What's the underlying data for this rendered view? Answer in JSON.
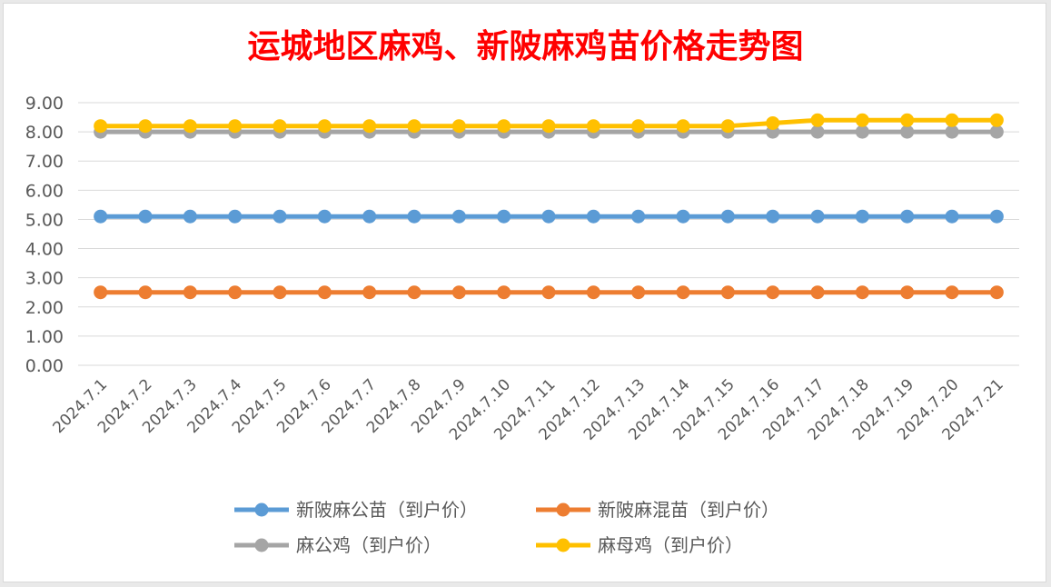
{
  "chart_data": {
    "type": "line",
    "title": "运城地区麻鸡、新陂麻鸡苗价格走势图",
    "categories": [
      "2024.7.1",
      "2024.7.2",
      "2024.7.3",
      "2024.7.4",
      "2024.7.5",
      "2024.7.6",
      "2024.7.7",
      "2024.7.8",
      "2024.7.9",
      "2024.7.10",
      "2024.7.11",
      "2024.7.12",
      "2024.7.13",
      "2024.7.14",
      "2024.7.15",
      "2024.7.16",
      "2024.7.17",
      "2024.7.18",
      "2024.7.19",
      "2024.7.20",
      "2024.7.21"
    ],
    "y_ticks": [
      "0.00",
      "1.00",
      "2.00",
      "3.00",
      "4.00",
      "5.00",
      "6.00",
      "7.00",
      "8.00",
      "9.00"
    ],
    "ylim": [
      0,
      9
    ],
    "grid": true,
    "legend_position": "bottom",
    "series": [
      {
        "name": "新陂麻公苗（到户价）",
        "color": "#5b9bd5",
        "values": [
          5.1,
          5.1,
          5.1,
          5.1,
          5.1,
          5.1,
          5.1,
          5.1,
          5.1,
          5.1,
          5.1,
          5.1,
          5.1,
          5.1,
          5.1,
          5.1,
          5.1,
          5.1,
          5.1,
          5.1,
          5.1
        ]
      },
      {
        "name": "新陂麻混苗（到户价）",
        "color": "#ed7d31",
        "values": [
          2.5,
          2.5,
          2.5,
          2.5,
          2.5,
          2.5,
          2.5,
          2.5,
          2.5,
          2.5,
          2.5,
          2.5,
          2.5,
          2.5,
          2.5,
          2.5,
          2.5,
          2.5,
          2.5,
          2.5,
          2.5
        ]
      },
      {
        "name": "麻公鸡（到户价）",
        "color": "#a5a5a5",
        "values": [
          8.0,
          8.0,
          8.0,
          8.0,
          8.0,
          8.0,
          8.0,
          8.0,
          8.0,
          8.0,
          8.0,
          8.0,
          8.0,
          8.0,
          8.0,
          8.0,
          8.0,
          8.0,
          8.0,
          8.0,
          8.0
        ]
      },
      {
        "name": "麻母鸡（到户价）",
        "color": "#ffc000",
        "values": [
          8.2,
          8.2,
          8.2,
          8.2,
          8.2,
          8.2,
          8.2,
          8.2,
          8.2,
          8.2,
          8.2,
          8.2,
          8.2,
          8.2,
          8.2,
          8.3,
          8.4,
          8.4,
          8.4,
          8.4,
          8.4
        ]
      }
    ]
  }
}
